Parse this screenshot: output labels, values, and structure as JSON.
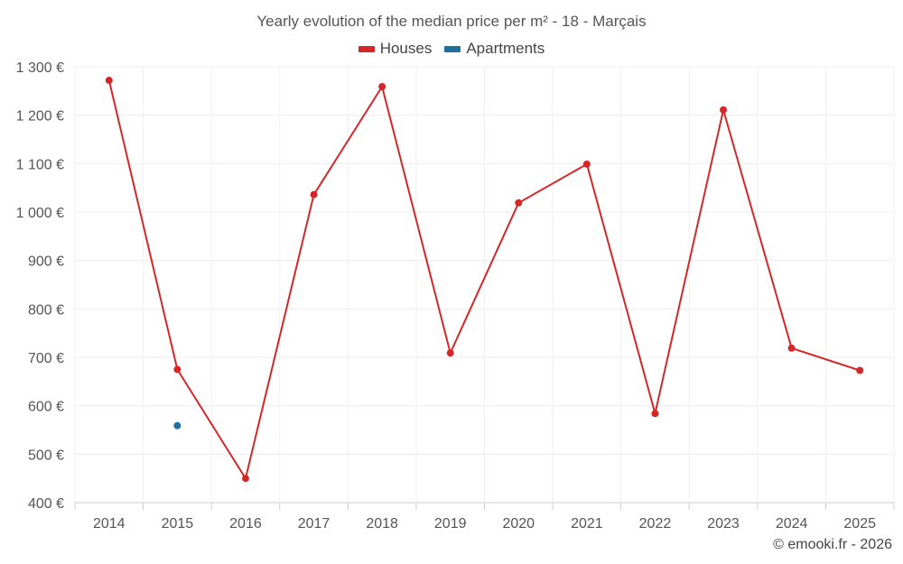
{
  "chart_data": {
    "type": "line",
    "title": "Yearly evolution of the median price per m² - 18 - Marçais",
    "xlabel": "",
    "ylabel": "",
    "categories": [
      "2014",
      "2015",
      "2016",
      "2017",
      "2018",
      "2019",
      "2020",
      "2021",
      "2022",
      "2023",
      "2024",
      "2025"
    ],
    "ylim": [
      400,
      1300
    ],
    "yticks": [
      400,
      500,
      600,
      700,
      800,
      900,
      1000,
      1100,
      1200,
      1300
    ],
    "ytick_labels": [
      "400 €",
      "500 €",
      "600 €",
      "700 €",
      "800 €",
      "900 €",
      "1 000 €",
      "1 100 €",
      "1 200 €",
      "1 300 €"
    ],
    "grid": true,
    "legend_position": "top-center",
    "series": [
      {
        "name": "Houses",
        "color": "#d62728",
        "values": [
          1272,
          675,
          450,
          1036,
          1259,
          709,
          1019,
          1099,
          584,
          1211,
          719,
          673
        ]
      },
      {
        "name": "Apartments",
        "color": "#1f6f9f",
        "values": [
          null,
          559,
          null,
          null,
          null,
          null,
          null,
          null,
          null,
          null,
          null,
          null
        ]
      }
    ]
  },
  "credit": "© emooki.fr - 2026"
}
